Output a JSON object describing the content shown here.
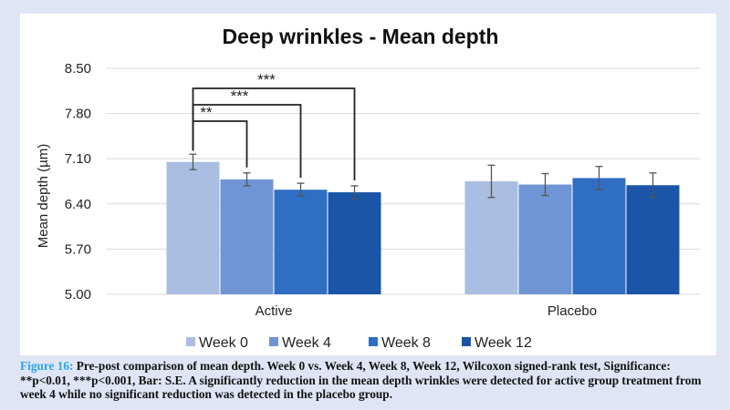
{
  "chart_data": {
    "type": "bar",
    "title": "Deep wrinkles - Mean depth",
    "ylabel": "Mean depth (µm)",
    "xlabel": "",
    "ylim": [
      5.0,
      8.5
    ],
    "yticks": [
      "5.00",
      "5.70",
      "6.40",
      "7.10",
      "7.80",
      "8.50"
    ],
    "grid": true,
    "legend_position": "bottom",
    "categories": [
      "Active",
      "Placebo"
    ],
    "series": [
      {
        "name": "Week 0",
        "color": "#a9bee0",
        "values": [
          7.05,
          6.75
        ],
        "errors": [
          0.12,
          0.25
        ]
      },
      {
        "name": "Week 4",
        "color": "#6f95d4",
        "values": [
          6.78,
          6.7
        ],
        "errors": [
          0.1,
          0.17
        ]
      },
      {
        "name": "Week 8",
        "color": "#2e6fc4",
        "values": [
          6.62,
          6.8
        ],
        "errors": [
          0.1,
          0.18
        ]
      },
      {
        "name": "Week 12",
        "color": "#1a55a8",
        "values": [
          6.58,
          6.69
        ],
        "errors": [
          0.1,
          0.19
        ]
      }
    ],
    "significance": [
      {
        "label": "**",
        "category": "Active",
        "from_series": 0,
        "to_series": 1
      },
      {
        "label": "***",
        "category": "Active",
        "from_series": 0,
        "to_series": 2
      },
      {
        "label": "***",
        "category": "Active",
        "from_series": 0,
        "to_series": 3
      }
    ]
  },
  "caption": {
    "label": "Figure 16:",
    "text": " Pre-post comparison of mean depth. Week 0 vs. Week 4, Week 8, Week 12, Wilcoxon signed-rank test, Significance: **p<0.01, ***p<0.001, Bar: S.E. A significantly reduction in the mean depth wrinkles were detected for active group treatment from week 4 while no significant reduction was detected in the placebo group."
  }
}
